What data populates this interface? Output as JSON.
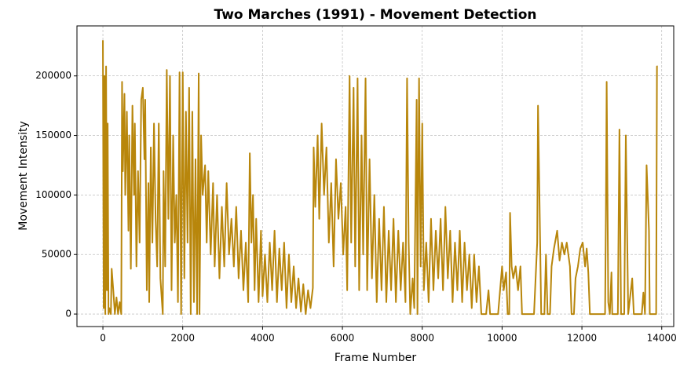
{
  "chart_data": {
    "type": "line",
    "title": "Two Marches (1991) - Movement Detection",
    "x_label": "Frame Number",
    "y_label": "Movement Intensity",
    "xlim": [
      -650,
      14300
    ],
    "ylim": [
      -10500,
      242000
    ],
    "xticks": [
      0,
      2000,
      4000,
      6000,
      8000,
      10000,
      12000,
      14000
    ],
    "yticks": [
      0,
      50000,
      100000,
      150000,
      200000
    ],
    "grid": true,
    "x": [
      0,
      20,
      40,
      60,
      80,
      100,
      120,
      140,
      160,
      200,
      220,
      260,
      300,
      340,
      380,
      420,
      460,
      480,
      500,
      540,
      560,
      600,
      640,
      660,
      700,
      740,
      780,
      800,
      840,
      880,
      920,
      960,
      1000,
      1040,
      1060,
      1100,
      1140,
      1160,
      1200,
      1240,
      1280,
      1320,
      1360,
      1400,
      1440,
      1500,
      1520,
      1560,
      1600,
      1640,
      1680,
      1720,
      1760,
      1800,
      1840,
      1880,
      1920,
      1960,
      2000,
      2040,
      2080,
      2120,
      2160,
      2200,
      2240,
      2280,
      2320,
      2360,
      2400,
      2420,
      2460,
      2500,
      2560,
      2600,
      2640,
      2700,
      2760,
      2800,
      2860,
      2920,
      2980,
      3040,
      3100,
      3160,
      3220,
      3280,
      3340,
      3400,
      3460,
      3520,
      3580,
      3640,
      3680,
      3720,
      3760,
      3800,
      3840,
      3900,
      3960,
      4000,
      4060,
      4120,
      4180,
      4240,
      4300,
      4360,
      4420,
      4480,
      4540,
      4600,
      4660,
      4720,
      4780,
      4840,
      4900,
      4960,
      5020,
      5080,
      5140,
      5200,
      5260,
      5280,
      5320,
      5380,
      5420,
      5480,
      5540,
      5600,
      5660,
      5720,
      5780,
      5840,
      5900,
      5960,
      6020,
      6080,
      6120,
      6180,
      6220,
      6280,
      6320,
      6380,
      6420,
      6480,
      6520,
      6580,
      6620,
      6680,
      6740,
      6800,
      6860,
      6920,
      6980,
      7040,
      7100,
      7160,
      7220,
      7280,
      7340,
      7400,
      7460,
      7520,
      7580,
      7620,
      7660,
      7700,
      7760,
      7800,
      7860,
      7880,
      7920,
      7960,
      8000,
      8040,
      8100,
      8160,
      8220,
      8280,
      8340,
      8400,
      8460,
      8520,
      8580,
      8640,
      8700,
      8760,
      8820,
      8880,
      8940,
      9000,
      9060,
      9120,
      9180,
      9240,
      9300,
      9360,
      9420,
      9480,
      9600,
      9660,
      9700,
      9900,
      10000,
      10040,
      10100,
      10140,
      10180,
      10200,
      10240,
      10280,
      10340,
      10400,
      10460,
      10500,
      10800,
      10880,
      10900,
      10940,
      10980,
      11060,
      11100,
      11140,
      11200,
      11240,
      11300,
      11380,
      11440,
      11500,
      11560,
      11620,
      11700,
      11740,
      11800,
      11840,
      11900,
      11960,
      12020,
      12080,
      12120,
      12160,
      12200,
      12580,
      12600,
      12620,
      12660,
      12700,
      12740,
      12760,
      12900,
      12940,
      12980,
      13060,
      13100,
      13160,
      13260,
      13300,
      13500,
      13540,
      13580,
      13620,
      13680,
      13700,
      13860,
      13880,
      13900
    ],
    "series": [
      {
        "color": "#b8860b",
        "values": [
          230000,
          5000,
          200000,
          0,
          208000,
          20000,
          160000,
          0,
          5000,
          0,
          38000,
          20000,
          0,
          14000,
          0,
          10000,
          0,
          195000,
          120000,
          185000,
          100000,
          170000,
          70000,
          150000,
          38000,
          175000,
          100000,
          160000,
          40000,
          120000,
          60000,
          180000,
          190000,
          130000,
          180000,
          20000,
          110000,
          10000,
          140000,
          60000,
          160000,
          80000,
          40000,
          160000,
          30000,
          0,
          120000,
          40000,
          205000,
          80000,
          200000,
          20000,
          150000,
          60000,
          100000,
          10000,
          203000,
          0,
          203000,
          30000,
          170000,
          60000,
          190000,
          0,
          170000,
          10000,
          130000,
          0,
          202000,
          0,
          150000,
          100000,
          125000,
          60000,
          120000,
          50000,
          110000,
          40000,
          100000,
          30000,
          90000,
          40000,
          110000,
          50000,
          80000,
          40000,
          90000,
          30000,
          70000,
          20000,
          60000,
          10000,
          135000,
          60000,
          100000,
          20000,
          80000,
          10000,
          70000,
          15000,
          50000,
          10000,
          60000,
          20000,
          70000,
          10000,
          55000,
          20000,
          60000,
          5000,
          50000,
          10000,
          40000,
          5000,
          30000,
          2000,
          25000,
          0,
          20000,
          5000,
          22000,
          140000,
          90000,
          150000,
          80000,
          160000,
          100000,
          140000,
          60000,
          110000,
          40000,
          130000,
          80000,
          110000,
          50000,
          90000,
          20000,
          200000,
          60000,
          190000,
          40000,
          198000,
          20000,
          150000,
          50000,
          198000,
          20000,
          130000,
          30000,
          100000,
          10000,
          80000,
          20000,
          90000,
          10000,
          70000,
          20000,
          80000,
          10000,
          70000,
          20000,
          60000,
          10000,
          198000,
          60000,
          0,
          30000,
          5000,
          180000,
          0,
          198000,
          40000,
          160000,
          20000,
          60000,
          10000,
          80000,
          20000,
          70000,
          30000,
          80000,
          20000,
          90000,
          30000,
          70000,
          10000,
          60000,
          20000,
          70000,
          10000,
          60000,
          20000,
          50000,
          5000,
          50000,
          10000,
          40000,
          0,
          0,
          20000,
          0,
          0,
          40000,
          20000,
          35000,
          0,
          0,
          85000,
          40000,
          30000,
          40000,
          20000,
          40000,
          0,
          0,
          60000,
          175000,
          90000,
          0,
          0,
          50000,
          0,
          0,
          40000,
          55000,
          70000,
          45000,
          60000,
          50000,
          60000,
          40000,
          0,
          0,
          30000,
          40000,
          55000,
          60000,
          40000,
          55000,
          35000,
          0,
          0,
          80000,
          195000,
          10000,
          0,
          35000,
          0,
          0,
          155000,
          0,
          0,
          150000,
          0,
          30000,
          0,
          0,
          18000,
          0,
          125000,
          70000,
          0,
          0,
          208000,
          208000
        ]
      }
    ]
  }
}
